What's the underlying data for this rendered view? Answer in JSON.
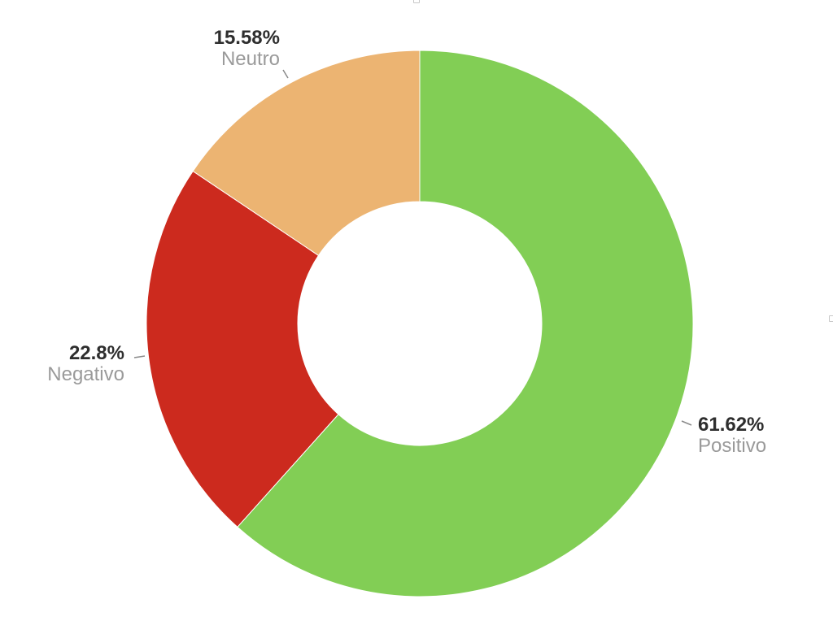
{
  "chart_data": {
    "type": "pie",
    "donut": true,
    "categories": [
      "Positivo",
      "Negativo",
      "Neutro"
    ],
    "values": [
      61.62,
      22.8,
      15.58
    ],
    "value_labels": [
      "61.62%",
      "22.8%",
      "15.58%"
    ],
    "colors": [
      "#82CE55",
      "#CC2A1E",
      "#ECB472"
    ],
    "start_angle_deg": 0,
    "direction": "clockwise",
    "title": "",
    "legend": "none"
  }
}
